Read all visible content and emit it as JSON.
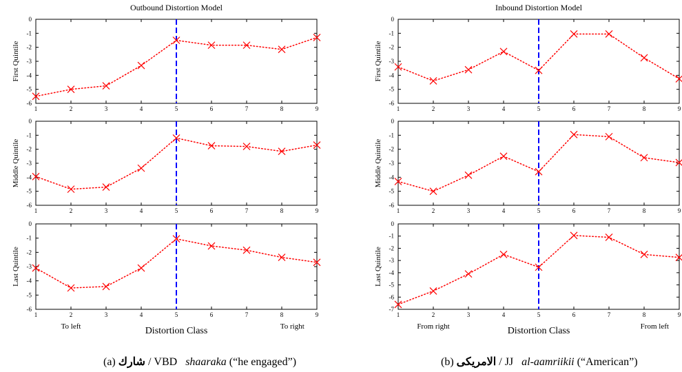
{
  "chart_data": [
    {
      "type": "line",
      "title": "Outbound Distortion Model",
      "xlabel": "Distortion Class",
      "x": [
        1,
        2,
        3,
        4,
        5,
        6,
        7,
        8,
        9
      ],
      "xticks": [
        "1",
        "2",
        "3",
        "4",
        "5",
        "6",
        "7",
        "8",
        "9"
      ],
      "x_annotations": {
        "left": "To left",
        "right": "To right"
      },
      "reference_line_x": 5,
      "grid": false,
      "series_color": "#ff0000",
      "reference_color": "#0000ff",
      "panels": [
        {
          "ylabel": "First Quintile",
          "ylim": [
            -6,
            0
          ],
          "yticks": [
            "0",
            "-1",
            "-2",
            "-3",
            "-4",
            "-5",
            "-6"
          ],
          "values": [
            -5.5,
            -5.0,
            -4.75,
            -3.3,
            -1.5,
            -1.85,
            -1.85,
            -2.15,
            -1.3
          ]
        },
        {
          "ylabel": "Middle Quintile",
          "ylim": [
            -6,
            0
          ],
          "yticks": [
            "0",
            "-1",
            "-2",
            "-3",
            "-4",
            "-5",
            "-6"
          ],
          "values": [
            -3.95,
            -4.85,
            -4.7,
            -3.35,
            -1.2,
            -1.75,
            -1.8,
            -2.15,
            -1.7
          ]
        },
        {
          "ylabel": "Last Quintile",
          "ylim": [
            -6,
            0
          ],
          "yticks": [
            "0",
            "-1",
            "-2",
            "-3",
            "-4",
            "-5",
            "-6"
          ],
          "values": [
            -3.1,
            -4.5,
            -4.4,
            -3.1,
            -1.05,
            -1.55,
            -1.85,
            -2.35,
            -2.7
          ]
        }
      ]
    },
    {
      "type": "line",
      "title": "Inbound Distortion Model",
      "xlabel": "Distortion Class",
      "x": [
        1,
        2,
        3,
        4,
        5,
        6,
        7,
        8,
        9
      ],
      "xticks": [
        "1",
        "2",
        "3",
        "4",
        "5",
        "6",
        "7",
        "8",
        "9"
      ],
      "x_annotations": {
        "left": "From right",
        "right": "From left"
      },
      "reference_line_x": 5,
      "grid": false,
      "series_color": "#ff0000",
      "reference_color": "#0000ff",
      "panels": [
        {
          "ylabel": "First Quintile",
          "ylim": [
            -6,
            0
          ],
          "yticks": [
            "0",
            "-1",
            "-2",
            "-3",
            "-4",
            "-5",
            "-6"
          ],
          "values": [
            -3.4,
            -4.4,
            -3.6,
            -2.3,
            -3.65,
            -1.05,
            -1.05,
            -2.75,
            -4.25
          ]
        },
        {
          "ylabel": "Middle Quintile",
          "ylim": [
            -6,
            0
          ],
          "yticks": [
            "0",
            "-1",
            "-2",
            "-3",
            "-4",
            "-5",
            "-6"
          ],
          "values": [
            -4.3,
            -5.0,
            -3.85,
            -2.5,
            -3.6,
            -0.95,
            -1.1,
            -2.6,
            -2.95
          ]
        },
        {
          "ylabel": "Last Quintile",
          "ylim": [
            -7,
            0
          ],
          "yticks": [
            "0",
            "-1",
            "-2",
            "-3",
            "-4",
            "-5",
            "-6",
            "-7"
          ],
          "values": [
            -6.6,
            -5.5,
            -4.1,
            -2.5,
            -3.55,
            -0.95,
            -1.1,
            -2.5,
            -2.75
          ]
        }
      ]
    }
  ],
  "captions": [
    {
      "prefix": "(a) ",
      "arabic": "شارك",
      "slash_tag": " / VBD ",
      "translit": "shaaraka",
      "gloss": " (“he engaged”)"
    },
    {
      "prefix": "(b) ",
      "arabic": "الامريكى",
      "slash_tag": " / JJ ",
      "translit": "al-aamriikii",
      "gloss": " (“American”)"
    }
  ]
}
